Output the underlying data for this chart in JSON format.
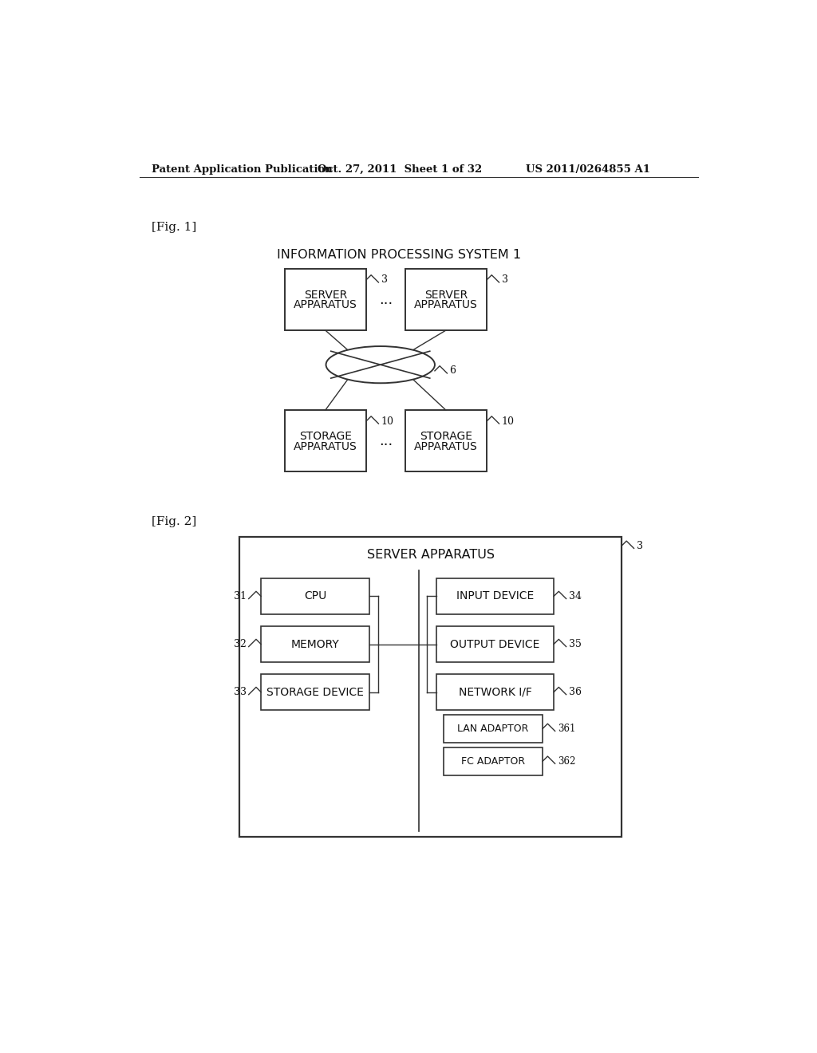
{
  "bg_color": "#ffffff",
  "header_text": "Patent Application Publication",
  "header_date": "Oct. 27, 2011  Sheet 1 of 32",
  "header_patent": "US 2011/0264855 A1",
  "fig1_label": "[Fig. 1]",
  "fig1_title": "INFORMATION PROCESSING SYSTEM 1",
  "fig2_label": "[Fig. 2]",
  "fig2_title": "SERVER APPARATUS"
}
